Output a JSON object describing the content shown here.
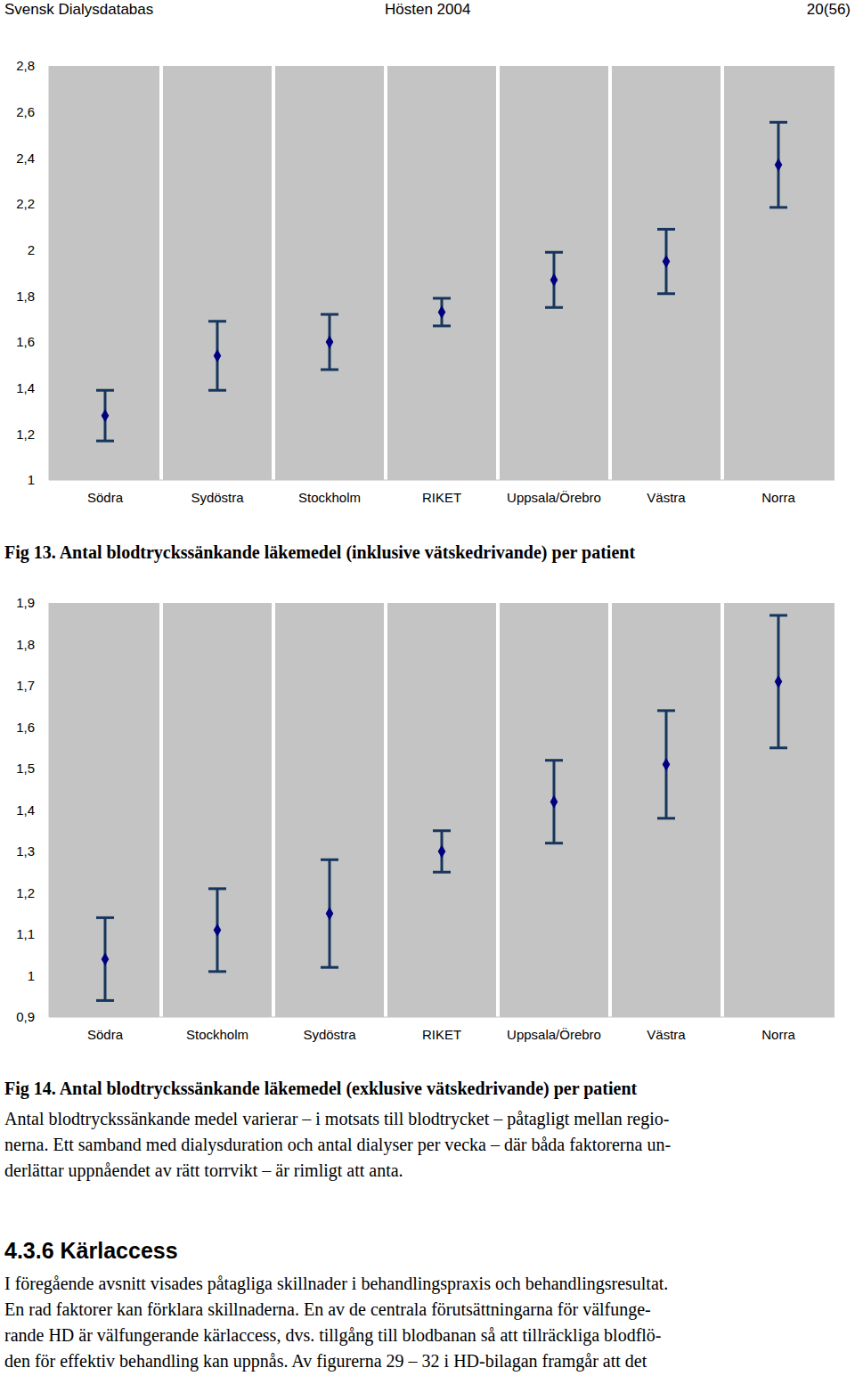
{
  "header": {
    "left": "Svensk Dialysdatabas",
    "center": "Hösten 2004",
    "right": "20(56)"
  },
  "chart_data": [
    {
      "type": "scatter",
      "title": "Fig 13. Antal blodtryckssänkande läkemedel (inklusive vätskedrivande) per patient",
      "categories": [
        "Södra",
        "Sydöstra",
        "Stockholm",
        "RIKET",
        "Uppsala/Örebro",
        "Västra",
        "Norra"
      ],
      "values": [
        1.28,
        1.54,
        1.6,
        1.73,
        1.87,
        1.95,
        2.37
      ],
      "errors": [
        0.11,
        0.15,
        0.12,
        0.06,
        0.12,
        0.14,
        0.185
      ],
      "color": "#000080",
      "marker": "diamond",
      "ylim": [
        1,
        2.8
      ],
      "yticks": [
        1,
        {
          "value": 1.2,
          "label": "1,2"
        },
        {
          "value": 1.4,
          "label": "1,4"
        },
        {
          "value": 1.6,
          "label": "1,6"
        },
        {
          "value": 1.8,
          "label": "1,8"
        },
        2,
        {
          "value": 2.2,
          "label": "2,2"
        },
        {
          "value": 2.4,
          "label": "2,4"
        },
        {
          "value": 2.6,
          "label": "2,6"
        },
        {
          "value": 2.8,
          "label": "2,8"
        }
      ],
      "grid": true
    },
    {
      "type": "scatter",
      "title": "Fig 14. Antal blodtryckssänkande läkemedel (exklusive vätskedrivande) per patient",
      "categories": [
        "Södra",
        "Stockholm",
        "Sydöstra",
        "RIKET",
        "Uppsala/Örebro",
        "Västra",
        "Norra"
      ],
      "values": [
        1.04,
        1.11,
        1.15,
        1.3,
        1.42,
        1.51,
        1.71
      ],
      "errors": [
        0.1,
        0.1,
        0.13,
        0.05,
        0.1,
        0.13,
        0.16
      ],
      "color": "#000080",
      "marker": "diamond",
      "ylim": [
        0.9,
        1.9
      ],
      "yticks": [
        {
          "value": 0.9,
          "label": "0,9"
        },
        1,
        {
          "value": 1.1,
          "label": "1,1"
        },
        {
          "value": 1.2,
          "label": "1,2"
        },
        {
          "value": 1.3,
          "label": "1,3"
        },
        {
          "value": 1.4,
          "label": "1,4"
        },
        {
          "value": 1.5,
          "label": "1,5"
        },
        {
          "value": 1.6,
          "label": "1,6"
        },
        {
          "value": 1.7,
          "label": "1,7"
        },
        {
          "value": 1.8,
          "label": "1,8"
        },
        {
          "value": 1.9,
          "label": "1,9"
        }
      ],
      "grid": true
    }
  ],
  "text": {
    "paragraph1": [
      "Antal blodtryckssänkande medel varierar – i motsats till blodtrycket – påtagligt mellan regio-",
      "nerna. Ett samband med dialysduration och antal dialyser per vecka – där båda faktorerna un-",
      "derlättar uppnåendet av rätt torrvikt – är rimligt att anta."
    ],
    "heading": "4.3.6 Kärlaccess",
    "paragraph2": [
      "I föregående avsnitt visades påtagliga skillnader i behandlingspraxis och behandlingsresultat.",
      "En rad faktorer kan förklara skillnaderna. En av de centrala förutsättningarna för välfunge-",
      "rande HD är välfungerande kärlaccess, dvs. tillgång till blodbanan så att tillräckliga blodflö-",
      "den för effektiv behandling kan uppnås. Av figurerna 29 – 32 i HD-bilagan framgår att det"
    ]
  }
}
